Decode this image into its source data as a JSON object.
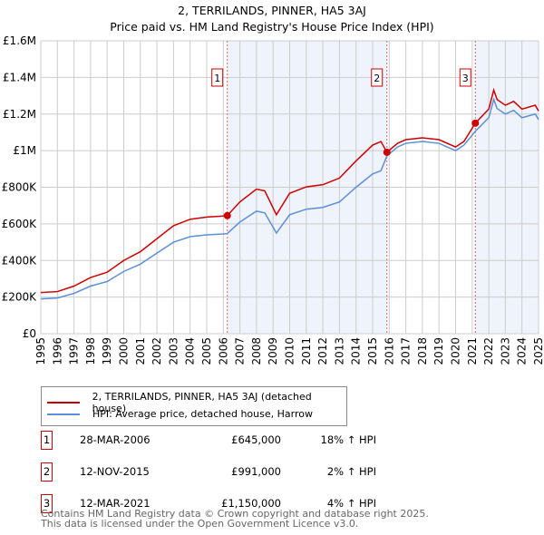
{
  "chart_data": {
    "type": "line",
    "title": "2, TERRILANDS, PINNER, HA5 3AJ",
    "subtitle": "Price paid vs. HM Land Registry's House Price Index (HPI)",
    "xlim": [
      1995,
      2025
    ],
    "ylim": [
      0,
      1600000
    ],
    "yticks": [
      {
        "v": 0,
        "label": "£0"
      },
      {
        "v": 200000,
        "label": "£200K"
      },
      {
        "v": 400000,
        "label": "£400K"
      },
      {
        "v": 600000,
        "label": "£600K"
      },
      {
        "v": 800000,
        "label": "£800K"
      },
      {
        "v": 1000000,
        "label": "£1M"
      },
      {
        "v": 1200000,
        "label": "£1.2M"
      },
      {
        "v": 1400000,
        "label": "£1.4M"
      },
      {
        "v": 1600000,
        "label": "£1.6M"
      }
    ],
    "xticks": [
      "1995",
      "1996",
      "1997",
      "1998",
      "1999",
      "2000",
      "2001",
      "2002",
      "2003",
      "2004",
      "2005",
      "2006",
      "2007",
      "2008",
      "2009",
      "2010",
      "2011",
      "2012",
      "2013",
      "2014",
      "2015",
      "2016",
      "2017",
      "2018",
      "2019",
      "2020",
      "2021",
      "2022",
      "2023",
      "2024",
      "2025"
    ],
    "grid": true,
    "legend_position": "below",
    "series": [
      {
        "name": "2, TERRILANDS, PINNER, HA5 3AJ (detached house)",
        "color": "#cc0000",
        "x": [
          1995,
          1996,
          1997,
          1998,
          1999,
          2000,
          2001,
          2002,
          2003,
          2004,
          2005,
          2006,
          2006.24,
          2007,
          2008,
          2008.5,
          2009.2,
          2010,
          2011,
          2012,
          2013,
          2014,
          2015,
          2015.5,
          2015.86,
          2016.5,
          2017,
          2018,
          2019,
          2020,
          2020.5,
          2021.19,
          2022,
          2022.3,
          2022.5,
          2023,
          2023.5,
          2024,
          2024.8,
          2025
        ],
        "y": [
          225000,
          230000,
          260000,
          307000,
          336000,
          400000,
          448000,
          519000,
          590000,
          625000,
          637000,
          643000,
          645000,
          720000,
          790000,
          780000,
          650000,
          767000,
          802000,
          814000,
          850000,
          944000,
          1030000,
          1050000,
          991000,
          1040000,
          1060000,
          1070000,
          1060000,
          1020000,
          1050000,
          1150000,
          1227000,
          1331000,
          1279000,
          1248000,
          1269000,
          1227000,
          1248000,
          1217000
        ]
      },
      {
        "name": "HPI: Average price, detached house, Harrow",
        "color": "#5b8fd6",
        "x": [
          1995,
          1996,
          1997,
          1998,
          1999,
          2000,
          2001,
          2002,
          2003,
          2004,
          2005,
          2006,
          2006.24,
          2007,
          2008,
          2008.5,
          2009.2,
          2010,
          2011,
          2012,
          2013,
          2014,
          2015,
          2015.5,
          2015.86,
          2016.5,
          2017,
          2018,
          2019,
          2020,
          2020.5,
          2021.19,
          2022,
          2022.3,
          2022.5,
          2023,
          2023.5,
          2024,
          2024.8,
          2025
        ],
        "y": [
          190000,
          195000,
          220000,
          260000,
          285000,
          340000,
          380000,
          440000,
          500000,
          530000,
          540000,
          545000,
          547000,
          610000,
          670000,
          660000,
          550000,
          650000,
          680000,
          690000,
          720000,
          800000,
          873000,
          890000,
          971000,
          1020000,
          1040000,
          1050000,
          1040000,
          1000000,
          1030000,
          1106000,
          1180000,
          1280000,
          1230000,
          1200000,
          1220000,
          1180000,
          1200000,
          1170000
        ]
      }
    ],
    "sales": [
      {
        "label": "1",
        "x": 2006.24,
        "y": 645000
      },
      {
        "label": "2",
        "x": 2015.86,
        "y": 991000
      },
      {
        "label": "3",
        "x": 2021.19,
        "y": 1150000
      }
    ]
  },
  "legend": {
    "property": "2, TERRILANDS, PINNER, HA5 3AJ (detached house)",
    "hpi": "HPI: Average price, detached house, Harrow"
  },
  "transactions": [
    {
      "num": "1",
      "date": "28-MAR-2006",
      "price": "£645,000",
      "hpi": "18% ↑ HPI"
    },
    {
      "num": "2",
      "date": "12-NOV-2015",
      "price": "£991,000",
      "hpi": "2% ↑ HPI"
    },
    {
      "num": "3",
      "date": "12-MAR-2021",
      "price": "£1,150,000",
      "hpi": "4% ↑ HPI"
    }
  ],
  "footer": [
    "Contains HM Land Registry data © Crown copyright and database right 2025.",
    "This data is licensed under the Open Government Licence v3.0."
  ]
}
